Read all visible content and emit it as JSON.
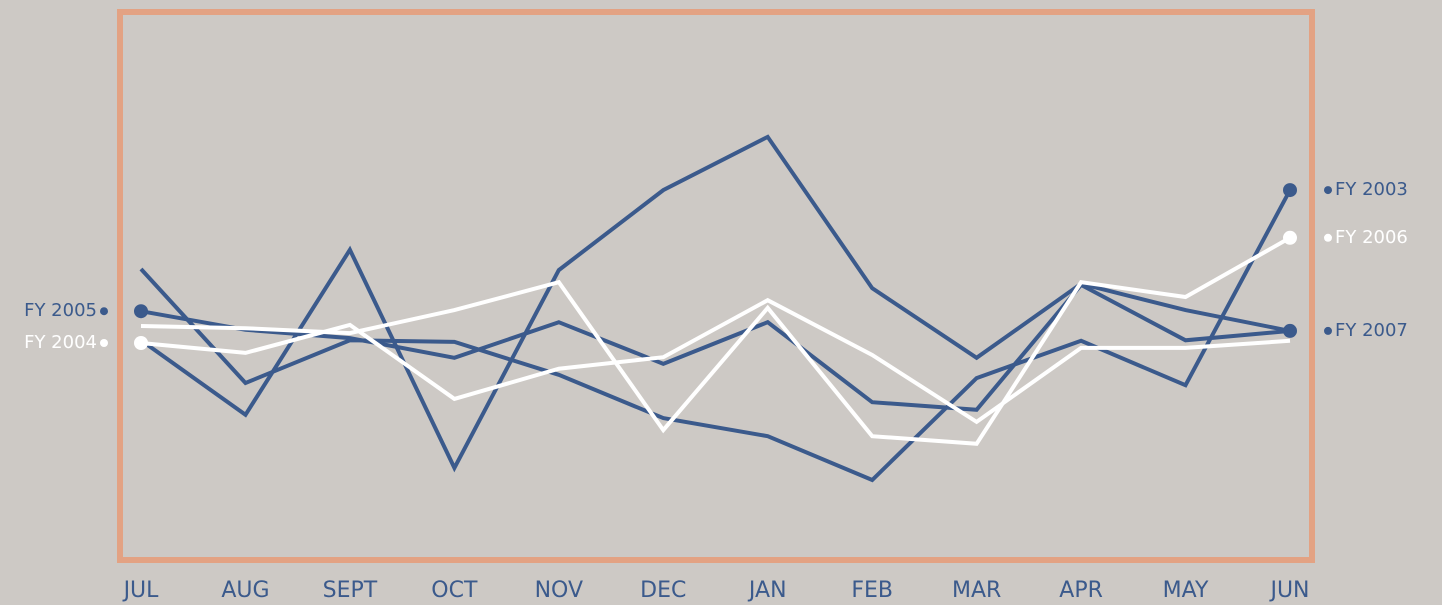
{
  "chart_data": {
    "type": "line",
    "categories": [
      "JUL",
      "AUG",
      "SEPT",
      "OCT",
      "NOV",
      "DEC",
      "JAN",
      "FEB",
      "MAR",
      "APR",
      "MAY",
      "JUN"
    ],
    "ylim": [
      0,
      100
    ],
    "series": [
      {
        "name": "FY 2003",
        "color": "#3b5a8c",
        "label_position": "end",
        "values": [
          53.1,
          32.3,
          40.1,
          39.8,
          33.8,
          25.9,
          22.6,
          14.6,
          33.2,
          40.0,
          31.9,
          67.5
        ]
      },
      {
        "name": "FY 2005",
        "color": "#3b5a8c",
        "label_position": "start",
        "values": [
          45.4,
          42.0,
          40.5,
          36.9,
          43.4,
          35.8,
          43.4,
          28.8,
          27.4,
          50.2,
          40.1,
          41.8
        ]
      },
      {
        "name": "FY 2007",
        "color": "#3b5a8c",
        "label_position": "end",
        "values": [
          40.1,
          26.5,
          56.6,
          16.8,
          52.9,
          67.5,
          77.2,
          49.6,
          36.9,
          50.4,
          45.6,
          41.8
        ]
      },
      {
        "name": "FY 2004",
        "color": "#ffffff",
        "label_position": "start",
        "values": [
          39.6,
          37.8,
          42.9,
          29.4,
          34.9,
          37.0,
          47.4,
          37.4,
          25.2,
          38.7,
          38.7,
          40.0
        ]
      },
      {
        "name": "FY 2006",
        "color": "#ffffff",
        "label_position": "end",
        "values": [
          42.7,
          42.3,
          41.4,
          45.6,
          50.7,
          23.7,
          46.0,
          22.6,
          21.2,
          50.7,
          48.0,
          58.8
        ]
      }
    ]
  }
}
